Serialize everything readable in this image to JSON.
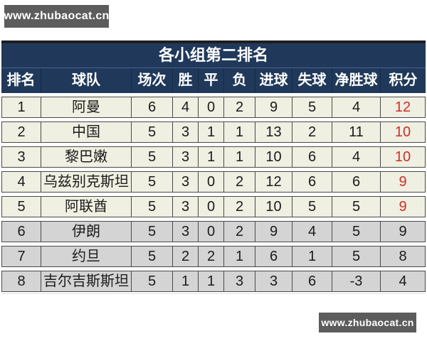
{
  "watermark_top": "www.zhubaocat.cn",
  "watermark_bottom": "www.zhubaocat.cn",
  "table": {
    "title": "各小组第二排名",
    "columns": [
      {
        "key": "rank",
        "label": "排名"
      },
      {
        "key": "team",
        "label": "球队"
      },
      {
        "key": "played",
        "label": "场次"
      },
      {
        "key": "win",
        "label": "胜"
      },
      {
        "key": "draw",
        "label": "平"
      },
      {
        "key": "loss",
        "label": "负"
      },
      {
        "key": "gf",
        "label": "进球"
      },
      {
        "key": "ga",
        "label": "失球"
      },
      {
        "key": "gd",
        "label": "净胜球"
      },
      {
        "key": "pts",
        "label": "积分"
      }
    ],
    "rows": [
      {
        "rank": "1",
        "team": "阿曼",
        "played": "6",
        "win": "4",
        "draw": "0",
        "loss": "2",
        "gf": "9",
        "ga": "5",
        "gd": "4",
        "pts": "12",
        "zone": "top"
      },
      {
        "rank": "2",
        "team": "中国",
        "played": "5",
        "win": "3",
        "draw": "1",
        "loss": "1",
        "gf": "13",
        "ga": "2",
        "gd": "11",
        "pts": "10",
        "zone": "top"
      },
      {
        "rank": "3",
        "team": "黎巴嫩",
        "played": "5",
        "win": "3",
        "draw": "1",
        "loss": "1",
        "gf": "10",
        "ga": "6",
        "gd": "4",
        "pts": "10",
        "zone": "top"
      },
      {
        "rank": "4",
        "team": "乌兹别克斯坦",
        "played": "5",
        "win": "3",
        "draw": "0",
        "loss": "2",
        "gf": "12",
        "ga": "6",
        "gd": "6",
        "pts": "9",
        "zone": "top"
      },
      {
        "rank": "5",
        "team": "阿联酋",
        "played": "5",
        "win": "3",
        "draw": "0",
        "loss": "2",
        "gf": "10",
        "ga": "5",
        "gd": "5",
        "pts": "9",
        "zone": "top"
      },
      {
        "rank": "6",
        "team": "伊朗",
        "played": "5",
        "win": "3",
        "draw": "0",
        "loss": "2",
        "gf": "9",
        "ga": "4",
        "gd": "5",
        "pts": "9",
        "zone": "bottom"
      },
      {
        "rank": "7",
        "team": "约旦",
        "played": "5",
        "win": "2",
        "draw": "2",
        "loss": "1",
        "gf": "6",
        "ga": "1",
        "gd": "5",
        "pts": "8",
        "zone": "bottom"
      },
      {
        "rank": "8",
        "team": "吉尔吉斯斯坦",
        "played": "5",
        "win": "1",
        "draw": "1",
        "loss": "3",
        "gf": "3",
        "ga": "6",
        "gd": "-3",
        "pts": "4",
        "zone": "bottom"
      }
    ]
  },
  "colors": {
    "header_bg": "#20395b",
    "header_text": "#ffffff",
    "row_top_bg": "#efefe2",
    "row_bottom_bg": "#d4d4d4",
    "points_red": "#cd2f28",
    "cell_border": "#4a4a4a",
    "watermark_bg": "#5c5c5c",
    "watermark_text": "#ffffff"
  },
  "chart_data": {
    "type": "table",
    "title": "各小组第二排名",
    "columns": [
      "排名",
      "球队",
      "场次",
      "胜",
      "平",
      "负",
      "进球",
      "失球",
      "净胜球",
      "积分"
    ],
    "rows": [
      [
        "1",
        "阿曼",
        "6",
        "4",
        "0",
        "2",
        "9",
        "5",
        "4",
        "12"
      ],
      [
        "2",
        "中国",
        "5",
        "3",
        "1",
        "1",
        "13",
        "2",
        "11",
        "10"
      ],
      [
        "3",
        "黎巴嫩",
        "5",
        "3",
        "1",
        "1",
        "10",
        "6",
        "4",
        "10"
      ],
      [
        "4",
        "乌兹别克斯坦",
        "5",
        "3",
        "0",
        "2",
        "12",
        "6",
        "6",
        "9"
      ],
      [
        "5",
        "阿联酋",
        "5",
        "3",
        "0",
        "2",
        "10",
        "5",
        "5",
        "9"
      ],
      [
        "6",
        "伊朗",
        "5",
        "3",
        "0",
        "2",
        "9",
        "4",
        "5",
        "9"
      ],
      [
        "7",
        "约旦",
        "5",
        "2",
        "2",
        "1",
        "6",
        "1",
        "5",
        "8"
      ],
      [
        "8",
        "吉尔吉斯斯坦",
        "5",
        "1",
        "1",
        "3",
        "3",
        "6",
        "-3",
        "4"
      ]
    ],
    "notes": "rows 1-5 points shown in red on cream background; rows 6-8 points in black on gray background"
  }
}
